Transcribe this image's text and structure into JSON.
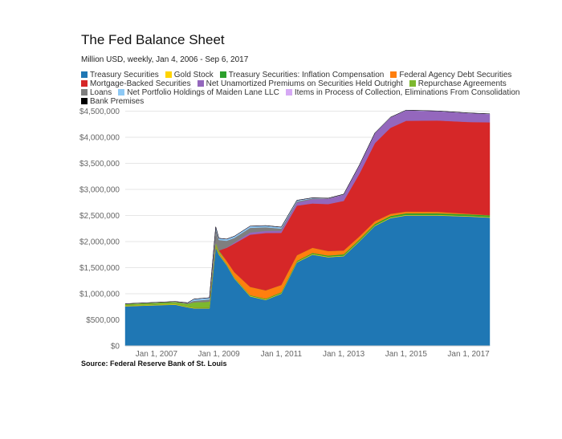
{
  "chart_data": {
    "type": "area",
    "stacked": true,
    "title": "The Fed Balance Sheet",
    "subtitle": "Million USD, weekly, Jan 4, 2006 - Sep 6, 2017",
    "source": "Source: Federal Reserve Bank of St. Louis",
    "xlim": [
      2006.0,
      2017.68
    ],
    "ylim": [
      0,
      4500000
    ],
    "grid": true,
    "legend": "top",
    "y_ticks": [
      "$0",
      "$500,000",
      "$1,000,000",
      "$1,500,000",
      "$2,000,000",
      "$2,500,000",
      "$3,000,000",
      "$3,500,000",
      "$4,000,000",
      "$4,500,000"
    ],
    "y_tick_values": [
      0,
      500000,
      1000000,
      1500000,
      2000000,
      2500000,
      3000000,
      3500000,
      4000000,
      4500000
    ],
    "x_ticks": [
      "Jan 1, 2007",
      "Jan 1, 2009",
      "Jan 1, 2011",
      "Jan 1, 2013",
      "Jan 1, 2015",
      "Jan 1, 2017"
    ],
    "x_tick_values": [
      2007,
      2009,
      2011,
      2013,
      2015,
      2017
    ],
    "x": [
      2006.0,
      2007.0,
      2007.6,
      2008.0,
      2008.2,
      2008.7,
      2008.9,
      2009.0,
      2009.25,
      2009.5,
      2010.0,
      2010.5,
      2011.0,
      2011.5,
      2012.0,
      2012.5,
      2013.0,
      2013.5,
      2014.0,
      2014.5,
      2015.0,
      2016.0,
      2017.0,
      2017.68
    ],
    "series": [
      {
        "name": "Treasury Securities",
        "color": "#1f77b4",
        "values": [
          760000,
          780000,
          790000,
          740000,
          720000,
          720000,
          1890000,
          1750000,
          1550000,
          1290000,
          950000,
          880000,
          1000000,
          1600000,
          1750000,
          1700000,
          1720000,
          2000000,
          2300000,
          2450000,
          2500000,
          2500000,
          2480000,
          2460000
        ]
      },
      {
        "name": "Gold Stock",
        "color": "#ffd400",
        "values": [
          11000,
          11000,
          11000,
          11000,
          11000,
          11000,
          11000,
          11000,
          11000,
          11000,
          11000,
          11000,
          11000,
          11000,
          11000,
          11000,
          11000,
          11000,
          11000,
          11000,
          11000,
          11000,
          11000,
          11000
        ]
      },
      {
        "name": "Treasury Securities: Inflation Compensation",
        "color": "#2ca02c",
        "values": [
          5000,
          6000,
          7000,
          8000,
          9000,
          10000,
          10000,
          10000,
          10000,
          10000,
          12000,
          14000,
          16000,
          18000,
          20000,
          22000,
          24000,
          26000,
          28000,
          30000,
          30000,
          30000,
          30000,
          30000
        ]
      },
      {
        "name": "Federal Agency Debt Securities",
        "color": "#ff7f0e",
        "values": [
          0,
          0,
          0,
          0,
          0,
          0,
          10000,
          20000,
          60000,
          100000,
          160000,
          160000,
          140000,
          110000,
          100000,
          85000,
          75000,
          60000,
          50000,
          40000,
          35000,
          30000,
          12000,
          5000
        ]
      },
      {
        "name": "Repurchase Agreements",
        "color": "#7cb82f",
        "values": [
          30000,
          35000,
          40000,
          50000,
          100000,
          110000,
          80000,
          40000,
          0,
          0,
          0,
          0,
          0,
          0,
          0,
          0,
          0,
          0,
          0,
          0,
          0,
          0,
          0,
          0
        ]
      },
      {
        "name": "Mortgage-Backed Securities",
        "color": "#d62728",
        "values": [
          0,
          0,
          0,
          0,
          0,
          0,
          0,
          0,
          250000,
          550000,
          1000000,
          1100000,
          1000000,
          950000,
          850000,
          900000,
          950000,
          1200000,
          1500000,
          1650000,
          1740000,
          1750000,
          1760000,
          1780000
        ]
      },
      {
        "name": "Net Unamortized Premiums on Securities Held Outright",
        "color": "#9467bd",
        "values": [
          0,
          0,
          0,
          0,
          0,
          0,
          0,
          0,
          5000,
          20000,
          40000,
          40000,
          40000,
          60000,
          80000,
          100000,
          120000,
          160000,
          190000,
          200000,
          200000,
          180000,
          170000,
          160000
        ]
      },
      {
        "name": "Loans",
        "color": "#7f7f7f",
        "values": [
          0,
          0,
          0,
          15000,
          25000,
          40000,
          250000,
          200000,
          130000,
          90000,
          90000,
          70000,
          40000,
          20000,
          15000,
          10000,
          5000,
          2000,
          1000,
          0,
          0,
          0,
          0,
          0
        ]
      },
      {
        "name": "Net Portfolio Holdings of Maiden Lane LLC",
        "color": "#8ec9f5",
        "values": [
          0,
          0,
          0,
          0,
          30000,
          30000,
          30000,
          30000,
          30000,
          30000,
          30000,
          28000,
          27000,
          20000,
          10000,
          0,
          0,
          0,
          0,
          0,
          0,
          0,
          0,
          0
        ]
      },
      {
        "name": "Items in Process of Collection, Eliminations From Consolidation",
        "color": "#d6a9f5",
        "values": [
          2000,
          2000,
          2000,
          2000,
          2000,
          2000,
          2000,
          2000,
          2000,
          2000,
          2000,
          2000,
          2000,
          2000,
          2000,
          2000,
          2000,
          2000,
          2000,
          2000,
          2000,
          2000,
          2000,
          2000
        ]
      },
      {
        "name": "Bank Premises",
        "color": "#000000",
        "values": [
          2000,
          2000,
          2000,
          2000,
          2000,
          2000,
          2000,
          2000,
          2000,
          2000,
          2000,
          2000,
          2000,
          2000,
          2000,
          2000,
          2000,
          2000,
          2000,
          2000,
          2000,
          2000,
          2000,
          2000
        ]
      }
    ],
    "legend_rows": [
      [
        0,
        1,
        2,
        3
      ],
      [
        5,
        6,
        4
      ],
      [
        7,
        8,
        9
      ],
      [
        10
      ]
    ]
  }
}
